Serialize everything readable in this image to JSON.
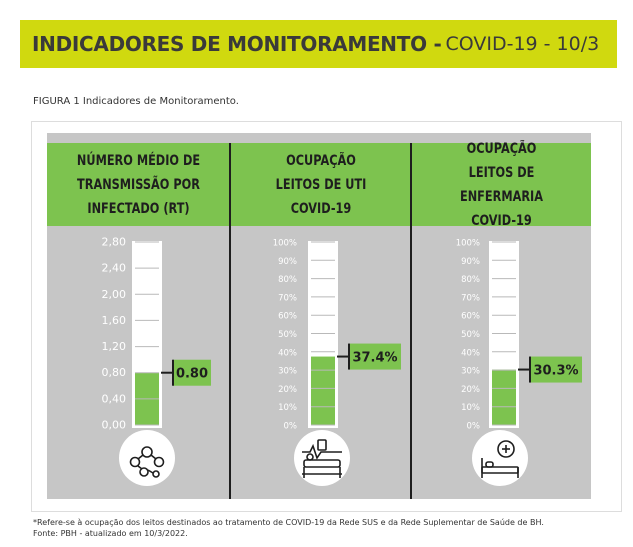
{
  "header": {
    "title": "INDICADORES DE MONITORAMENTO -",
    "subtitle": "COVID-19 - 10/3"
  },
  "figure_caption": "FIGURA 1 Indicadores de Monitoramento.",
  "columns": [
    {
      "title": "NÚMERO MÉDIO DE\nTRANSMISSÃO POR\nINFECTADO (RT)",
      "icon": "virus-network-icon"
    },
    {
      "title": "OCUPAÇÃO\nLEITOS DE UTI\nCOVID-19",
      "icon": "icu-bed-icon"
    },
    {
      "title": "OCUPAÇÃO\nLEITOS DE ENFERMARIA\nCOVID-19",
      "icon": "ward-bed-icon"
    }
  ],
  "chart_data": [
    {
      "type": "bar",
      "title": "NÚMERO MÉDIO DE TRANSMISSÃO POR INFECTADO (RT)",
      "categories": [
        "RT"
      ],
      "values": [
        0.8
      ],
      "value_label": "0.80",
      "ylim": [
        0,
        2.8
      ],
      "yticks": [
        "2,80",
        "2,40",
        "2,00",
        "1,60",
        "1,20",
        "0,80",
        "0,40",
        "0,00"
      ]
    },
    {
      "type": "bar",
      "title": "OCUPAÇÃO LEITOS DE UTI COVID-19",
      "categories": [
        "UTI"
      ],
      "values": [
        37.4
      ],
      "value_label": "37.4%",
      "ylim": [
        0,
        100
      ],
      "yticks": [
        "100%",
        "90%",
        "80%",
        "70%",
        "60%",
        "50%",
        "40%",
        "30%",
        "20%",
        "10%",
        "0%"
      ]
    },
    {
      "type": "bar",
      "title": "OCUPAÇÃO LEITOS DE ENFERMARIA COVID-19",
      "categories": [
        "Enfermaria"
      ],
      "values": [
        30.3
      ],
      "value_label": "30.3%",
      "ylim": [
        0,
        100
      ],
      "yticks": [
        "100%",
        "90%",
        "80%",
        "70%",
        "60%",
        "50%",
        "40%",
        "30%",
        "20%",
        "10%",
        "0%"
      ]
    }
  ],
  "colors": {
    "accent": "#d0d90f",
    "fill": "#7dc34f",
    "panel": "#c6c6c6"
  },
  "footnote": {
    "line1": "*Refere-se à ocupação dos leitos destinados ao tratamento de COVID-19 da Rede SUS e da Rede Suplementar de Saúde de BH.",
    "line2": "Fonte: PBH - atualizado em 10/3/2022."
  }
}
